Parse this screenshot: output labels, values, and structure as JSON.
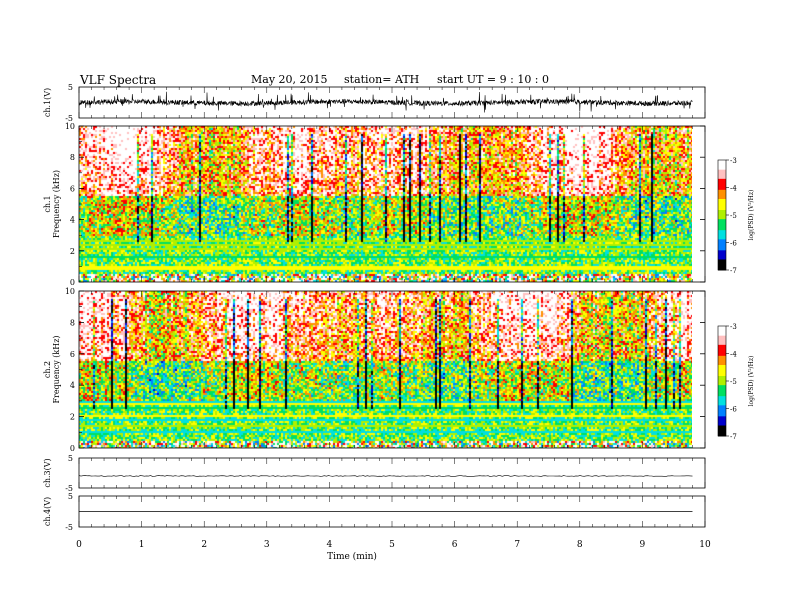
{
  "header": {
    "title": "VLF  Spectra",
    "date": "May 20, 2015",
    "station": "station= ATH",
    "start": "start  UT  =   9  : 10 : 0"
  },
  "colors": {
    "spectrogram_scale": [
      "#000000",
      "#0000cc",
      "#0080ff",
      "#00e0e0",
      "#00e060",
      "#b0f000",
      "#ffff00",
      "#ff9000",
      "#ff0000",
      "#ffc0c0",
      "#ffffff"
    ]
  },
  "chart_data": [
    {
      "type": "line",
      "panel": "ch1-waveform",
      "ylabel": "ch.1(V)",
      "ylim": [
        -5,
        5
      ],
      "ytick_labels": [
        "5",
        "-5"
      ],
      "baseline": 0,
      "amplitude_range": [
        -2,
        2
      ]
    },
    {
      "type": "heatmap",
      "panel": "ch1-spectrogram",
      "ylabel": "ch.1",
      "ylabel2": "Frequency  (kHz)",
      "ylim": [
        0,
        10
      ],
      "ytick_labels": [
        "0",
        "2",
        "4",
        "6",
        "8",
        "10"
      ],
      "colorbar": {
        "label": "log(PSD) (V²/Hz)",
        "range": [
          -7,
          -3
        ],
        "tick_labels": [
          "-3",
          "-4",
          "-5",
          "-6",
          "-7"
        ]
      }
    },
    {
      "type": "heatmap",
      "panel": "ch2-spectrogram",
      "ylabel": "ch.2",
      "ylabel2": "Frequency  (kHz)",
      "ylim": [
        0,
        10
      ],
      "ytick_labels": [
        "0",
        "2",
        "4",
        "6",
        "8",
        "10"
      ],
      "colorbar": {
        "label": "log(PSD) (V²/Hz)",
        "range": [
          -7,
          -3
        ],
        "tick_labels": [
          "-3",
          "-4",
          "-5",
          "-6",
          "-7"
        ]
      }
    },
    {
      "type": "line",
      "panel": "ch3-waveform",
      "ylabel": "ch.3(V)",
      "ylim": [
        -5,
        5
      ],
      "ytick_labels": [
        "5",
        "-5"
      ],
      "baseline": -1
    },
    {
      "type": "line",
      "panel": "ch4-waveform",
      "ylabel": "ch.4(V)",
      "ylim": [
        -5,
        5
      ],
      "ytick_labels": [
        "5",
        "-5"
      ],
      "baseline": 0
    }
  ],
  "xaxis": {
    "label": "Time  (min)",
    "xlim": [
      0,
      10
    ],
    "data_end": 9.8,
    "tick_labels": [
      "0",
      "1",
      "2",
      "3",
      "4",
      "5",
      "6",
      "7",
      "8",
      "9",
      "10"
    ]
  }
}
